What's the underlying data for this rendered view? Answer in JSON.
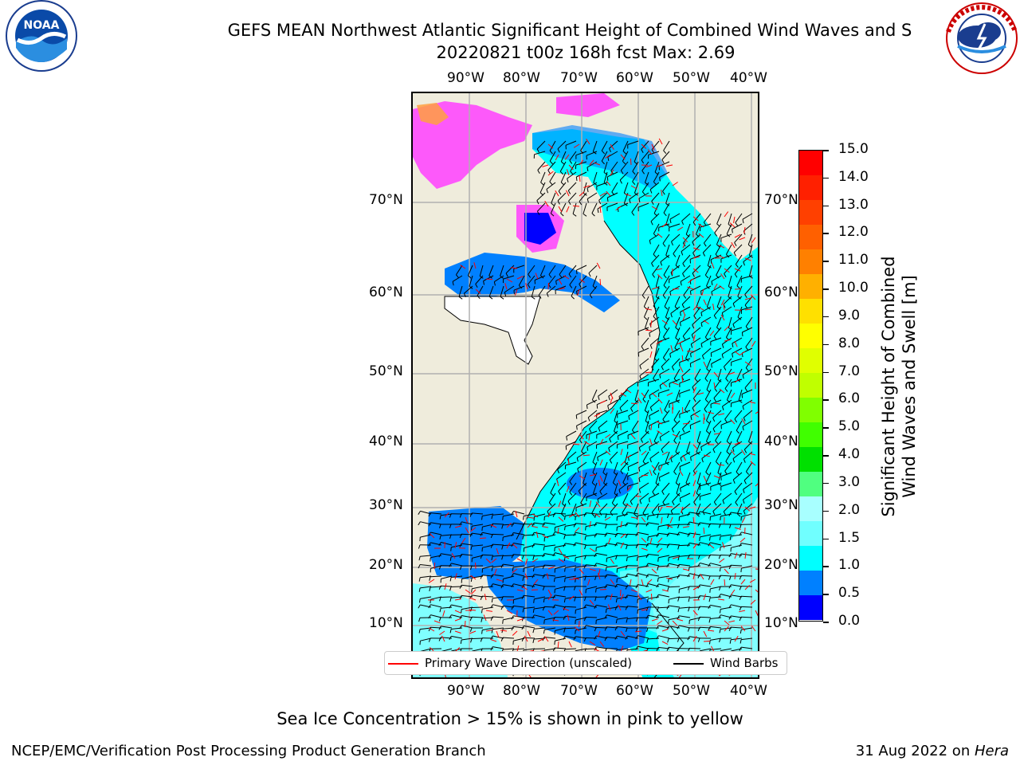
{
  "header": {
    "title_line1": "GEFS MEAN Northwest Atlantic Significant Height of Combined Wind Waves and S",
    "title_line2": "20220821 t00z 168h fcst   Max: 2.69"
  },
  "logos": {
    "left": {
      "icon": "noaa-logo",
      "text": "NOAA",
      "ring_text": "NATIONAL OCEANIC AND ATMOSPHERIC ADMINISTRATION · U.S. DEPARTMENT OF COMMERCE"
    },
    "right": {
      "icon": "nws-logo",
      "ring_text": "NATIONAL WEATHER SERVICE"
    }
  },
  "map": {
    "lon_ticks": [
      "90°W",
      "80°W",
      "70°W",
      "60°W",
      "50°W",
      "40°W"
    ],
    "lat_ticks": [
      "70°N",
      "60°N",
      "50°N",
      "40°N",
      "30°N",
      "20°N",
      "10°N"
    ],
    "colors": {
      "land": "#efecdc",
      "ocean_low": "#0000ff",
      "ocean_mid": "#0080ff",
      "ocean_cyan": "#00ffff",
      "ocean_light": "#80ffff",
      "ocean_pale": "#a8ffff",
      "ice": "#ff40ff",
      "ice_warm": "#ffa040",
      "wave_dir": "#ff0000",
      "barb": "#000000"
    }
  },
  "legend": {
    "primary_wave_label": "Primary Wave Direction (unscaled)",
    "wind_barbs_label": "Wind Barbs"
  },
  "colorbar": {
    "title_line1": "Significant Height of Combined",
    "title_line2": "Wind Waves and Swell [m]",
    "labels": [
      "15.0",
      "14.0",
      "13.0",
      "12.0",
      "11.0",
      "10.0",
      "9.0",
      "8.0",
      "7.0",
      "6.0",
      "5.0",
      "4.0",
      "3.0",
      "2.0",
      "1.5",
      "1.0",
      "0.5",
      "0.0"
    ],
    "colors": [
      "#ff0000",
      "#ff2000",
      "#ff4000",
      "#ff6000",
      "#ff8000",
      "#ffb000",
      "#ffe000",
      "#ffff00",
      "#e0ff00",
      "#c0ff00",
      "#80ff00",
      "#40ff00",
      "#00e000",
      "#50ff80",
      "#a8ffff",
      "#70ffff",
      "#00ffff",
      "#0080ff",
      "#0000ff"
    ]
  },
  "notes": {
    "sea_ice": "Sea Ice Concentration > 15% is shown in pink to yellow"
  },
  "footer": {
    "left": "NCEP/EMC/Verification Post Processing Product Generation Branch",
    "right_date": "31 Aug 2022 on ",
    "right_host": "Hera"
  }
}
